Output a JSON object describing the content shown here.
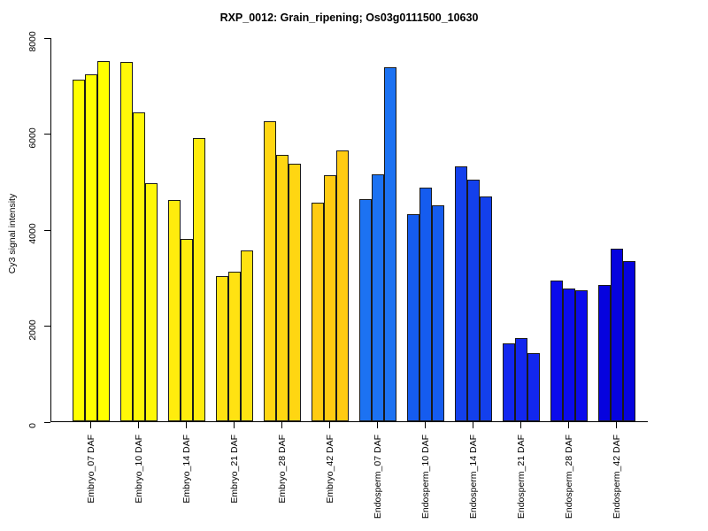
{
  "title": "RXP_0012: Grain_ripening; Os03g0111500_10630",
  "chart_data": {
    "type": "bar",
    "title": "RXP_0012: Grain_ripening; Os03g0111500_10630",
    "xlabel": "",
    "ylabel": "Cy3 signal intensity",
    "ylim": [
      0,
      8000
    ],
    "yticks": [
      0,
      2000,
      4000,
      6000,
      8000
    ],
    "grid": false,
    "legend": false,
    "bars_per_group": 3,
    "bar_border_color": "#1a1a1a",
    "axis_color": "#000000",
    "categories": [
      "Embryo_07 DAF",
      "Embryo_10 DAF",
      "Embryo_14 DAF",
      "Embryo_21 DAF",
      "Embryo_28 DAF",
      "Embryo_42 DAF",
      "Endosperm_07 DAF",
      "Endosperm_10 DAF",
      "Endosperm_14 DAF",
      "Endosperm_21 DAF",
      "Endosperm_28 DAF",
      "Endosperm_42 DAF"
    ],
    "groups": [
      {
        "label": "Embryo_07 DAF",
        "color": "#FFFF00",
        "values": [
          7120,
          7230,
          7500
        ]
      },
      {
        "label": "Embryo_10 DAF",
        "color": "#FFF808",
        "values": [
          7480,
          6430,
          4950
        ]
      },
      {
        "label": "Embryo_14 DAF",
        "color": "#FFEC0D",
        "values": [
          4600,
          3800,
          5890
        ]
      },
      {
        "label": "Embryo_21 DAF",
        "color": "#FFE212",
        "values": [
          3020,
          3110,
          3550
        ]
      },
      {
        "label": "Embryo_28 DAF",
        "color": "#FFD612",
        "values": [
          6250,
          5550,
          5370
        ]
      },
      {
        "label": "Embryo_42 DAF",
        "color": "#FFCB12",
        "values": [
          4550,
          5120,
          5640
        ]
      },
      {
        "label": "Endosperm_07 DAF",
        "color": "#1C72F2",
        "values": [
          4620,
          5150,
          7370
        ]
      },
      {
        "label": "Endosperm_10 DAF",
        "color": "#155CEF",
        "values": [
          4310,
          4870,
          4500
        ]
      },
      {
        "label": "Endosperm_14 DAF",
        "color": "#1340EC",
        "values": [
          5310,
          5030,
          4680
        ]
      },
      {
        "label": "Endosperm_21 DAF",
        "color": "#1227EF",
        "values": [
          1620,
          1730,
          1420
        ]
      },
      {
        "label": "Endosperm_28 DAF",
        "color": "#0B0BEC",
        "values": [
          2930,
          2760,
          2730
        ]
      },
      {
        "label": "Endosperm_42 DAF",
        "color": "#0603DE",
        "values": [
          2840,
          3590,
          3340
        ]
      }
    ]
  }
}
